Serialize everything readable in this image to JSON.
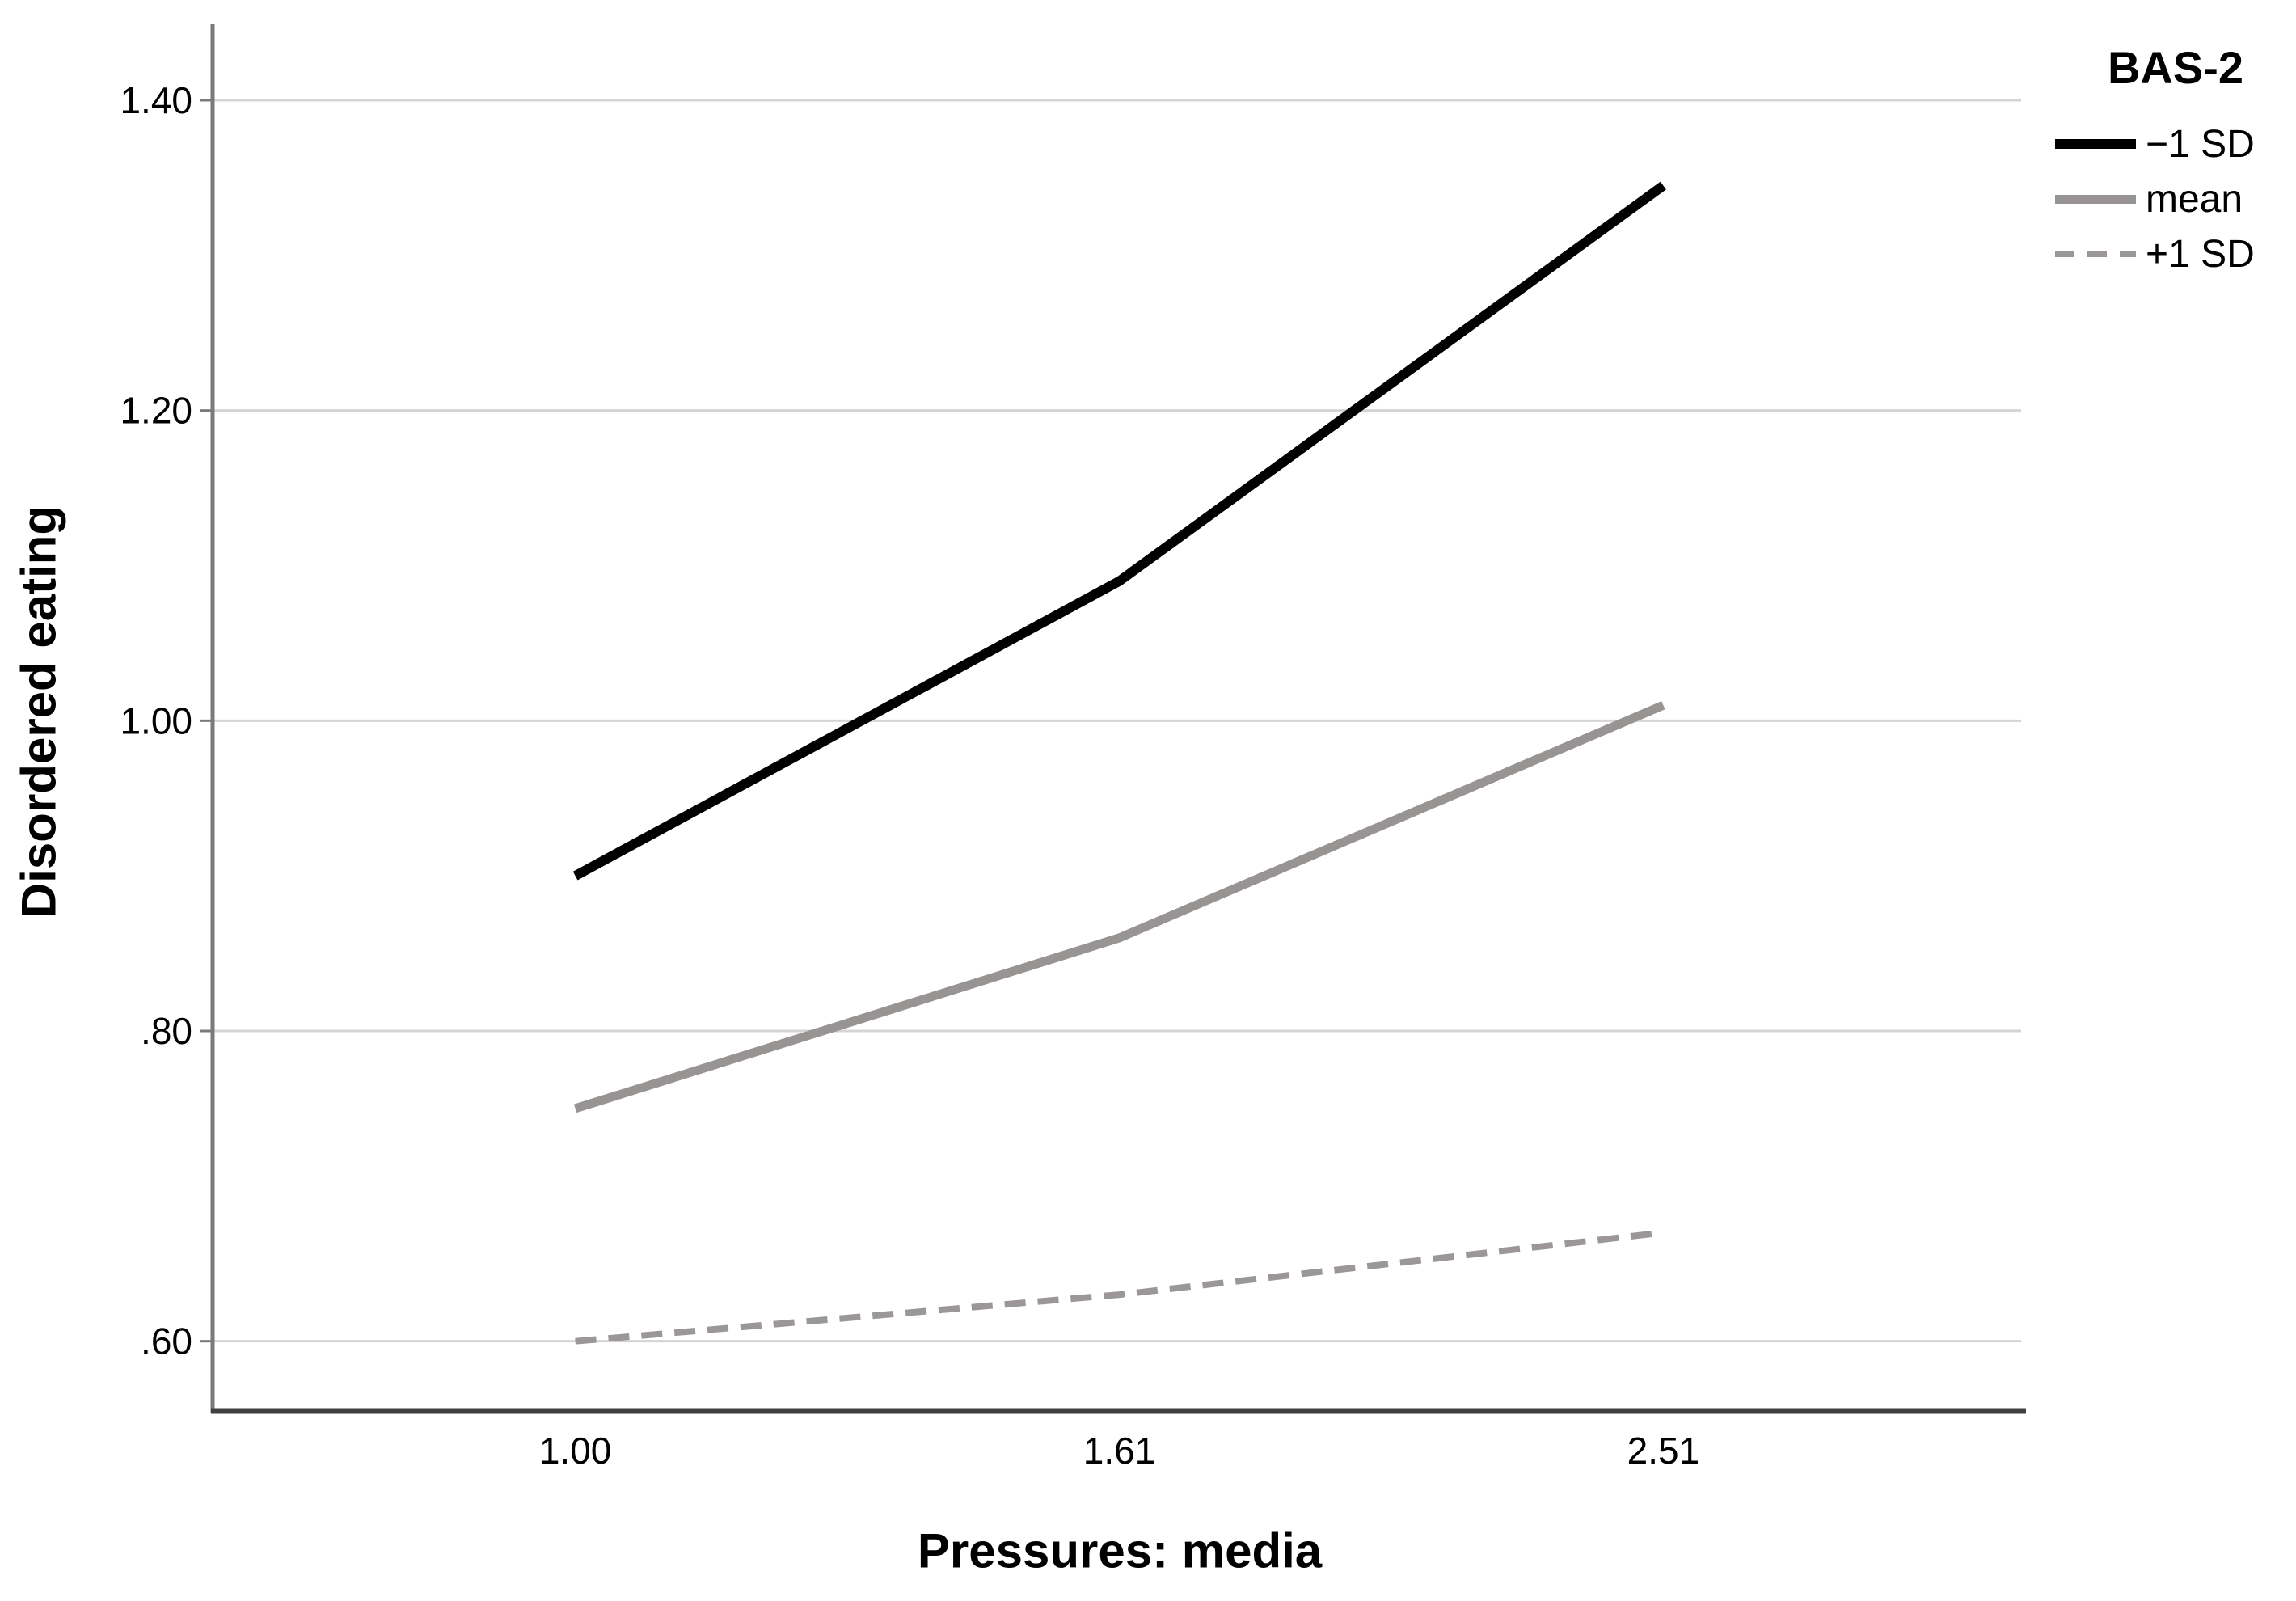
{
  "chart_data": {
    "type": "line",
    "title": "",
    "xlabel": "Pressures: media",
    "ylabel": "Disordered eating",
    "categories": [
      "1.00",
      "1.61",
      "2.51"
    ],
    "x_values": [
      1.0,
      1.61,
      2.51
    ],
    "y_ticks": {
      "values": [
        0.6,
        0.8,
        1.0,
        1.2,
        1.4
      ],
      "labels": [
        ".60",
        ".80",
        "1.00",
        "1.20",
        "1.40"
      ]
    },
    "ylim": [
      0.555,
      1.449
    ],
    "grid": "horizontal",
    "series": [
      {
        "name": "−1 SD",
        "values": [
          0.9,
          1.09,
          1.345
        ],
        "line": "solid",
        "color": "#000000",
        "stroke_width": 12
      },
      {
        "name": "mean",
        "values": [
          0.75,
          0.86,
          1.01
        ],
        "line": "solid",
        "color": "#989494",
        "stroke_width": 11
      },
      {
        "name": "+1 SD",
        "values": [
          0.6,
          0.63,
          0.67
        ],
        "line": "dashed",
        "color": "#9b9797",
        "stroke_width": 8
      }
    ],
    "legend": {
      "title": "BAS-2",
      "position": "outside-top-right",
      "items": [
        "−1 SD",
        "mean",
        "+1 SD"
      ]
    },
    "colors": {
      "gridline": "#d4d4d4",
      "y_axis": "#7a7a7a",
      "x_axis": "#404040",
      "text": "#000000",
      "background": "#ffffff"
    }
  }
}
